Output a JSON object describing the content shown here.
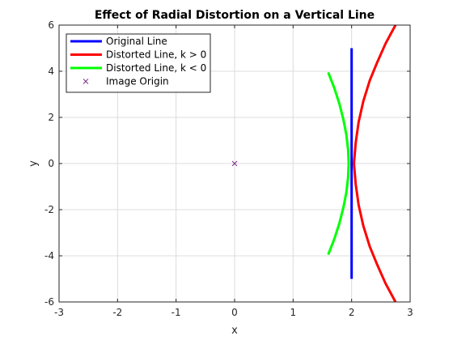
{
  "chart_data": {
    "type": "line",
    "title": "Effect of Radial Distortion on a Vertical Line",
    "xlabel": "x",
    "ylabel": "y",
    "xlim": [
      -3,
      3
    ],
    "ylim": [
      -6,
      6
    ],
    "xticks": [
      "-3",
      "-2",
      "-1",
      "0",
      "1",
      "2",
      "3"
    ],
    "yticks": [
      "-6",
      "-4",
      "-2",
      "0",
      "2",
      "4",
      "6"
    ],
    "grid": true,
    "legend_position": "top-left",
    "series": [
      {
        "name": "Original Line",
        "color": "#0000ff",
        "marker": "none",
        "x": [
          2,
          2
        ],
        "y": [
          -5,
          5
        ]
      },
      {
        "name": "Distorted Line, k > 0",
        "color": "#ff0000",
        "marker": "none",
        "x": [
          2.75,
          2.58,
          2.44,
          2.31,
          2.2,
          2.12,
          2.07,
          2.04,
          2.07,
          2.12,
          2.2,
          2.31,
          2.44,
          2.58,
          2.75
        ],
        "y": [
          -6.0,
          -5.2,
          -4.4,
          -3.6,
          -2.7,
          -1.8,
          -0.9,
          0,
          0.9,
          1.8,
          2.7,
          3.6,
          4.4,
          5.2,
          6.0
        ]
      },
      {
        "name": "Distorted Line, k < 0",
        "color": "#00ff00",
        "marker": "none",
        "x": [
          1.6,
          1.7,
          1.79,
          1.86,
          1.91,
          1.94,
          1.95,
          1.94,
          1.91,
          1.86,
          1.79,
          1.7,
          1.6
        ],
        "y": [
          -3.95,
          -3.3,
          -2.6,
          -1.9,
          -1.25,
          -0.6,
          0,
          0.6,
          1.25,
          1.9,
          2.6,
          3.3,
          3.95
        ]
      },
      {
        "name": "Image Origin",
        "color": "#7e2f8e",
        "marker": "x",
        "x": [
          0
        ],
        "y": [
          0
        ]
      }
    ]
  }
}
